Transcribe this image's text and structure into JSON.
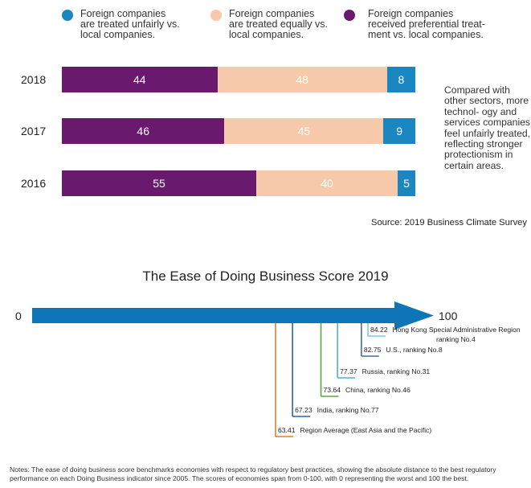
{
  "legend": [
    {
      "line1": "Foreign companies",
      "line2": "are treated unfairly vs.",
      "line3": "local companies.",
      "color": "#1b87c0"
    },
    {
      "line1": "Foreign companies",
      "line2": "are treated equally vs.",
      "line3": "local companies.",
      "color": "#f6c9ab"
    },
    {
      "line1": "Foreign companies",
      "line2": "received preferential treat-",
      "line3": "ment vs. local companies.",
      "color": "#6a1a6e"
    }
  ],
  "chart_data": [
    {
      "type": "bar",
      "orientation": "horizontal-stacked",
      "categories": [
        "2018",
        "2017",
        "2016"
      ],
      "series": [
        {
          "name": "Foreign companies received preferential treatment vs. local companies.",
          "color": "#6a1a6e",
          "values": [
            44,
            46,
            55
          ]
        },
        {
          "name": "Foreign companies are treated equally vs. local companies.",
          "color": "#f6c9ab",
          "values": [
            48,
            45,
            40
          ]
        },
        {
          "name": "Foreign companies are treated unfairly vs. local companies.",
          "color": "#1b87c0",
          "values": [
            8,
            9,
            5
          ]
        }
      ],
      "note": "Compared with other sectors, more technol- ogy and services companies feel unfairly treated, reflecting stronger protectionism in certain areas.",
      "source": "Source: 2019 Business Climate Survey"
    },
    {
      "type": "scatter",
      "title": "The Ease of Doing Business Score 2019",
      "axis_min_label": "0",
      "axis_max_label": "100",
      "xlim": [
        0,
        100
      ],
      "points": [
        {
          "score": 84.22,
          "value_label": "84.22",
          "label": "Hong Kong Special Administrative Region",
          "label2": "ranking No.4",
          "color": "#7fc4e0"
        },
        {
          "score": 82.75,
          "value_label": "82.75",
          "label": "U.S., ranking No.8",
          "color": "#3f6ea8"
        },
        {
          "score": 77.37,
          "value_label": "77.37",
          "label": "Russia, ranking No.31",
          "color": "#4eb0d0"
        },
        {
          "score": 73.64,
          "value_label": "73.64",
          "label": "China, ranking No.46",
          "color": "#55aa3e"
        },
        {
          "score": 67.23,
          "value_label": "67.23",
          "label": "India, ranking No.77",
          "color": "#2c64a8"
        },
        {
          "score": 63.41,
          "value_label": "63.41",
          "label": "Region Average (East Asia and the Pacific)",
          "color": "#e07d2c"
        }
      ],
      "arrow_color": "#0e75b8"
    }
  ],
  "footnote": "Notes: The ease of doing business score benchmarks economies with respect to regulatory best practices, showing the absolute distance to the best regulatory performance on each Doing Business indicator since 2005. The scores of economies span from 0-100, with 0 representing the worst and 100 the best."
}
